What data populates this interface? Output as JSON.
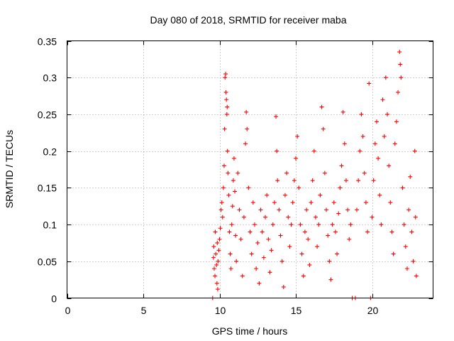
{
  "chart_data": {
    "type": "scatter",
    "title": "Day 080 of 2018, SRMTID for receiver maba",
    "xlabel": "GPS time / hours",
    "ylabel": "SRMTID / TECUs",
    "xlim": [
      0,
      24
    ],
    "ylim": [
      0,
      0.35
    ],
    "x_ticks": [
      0,
      5,
      10,
      15,
      20
    ],
    "x_tick_labels": [
      "0",
      "5",
      "10",
      "15",
      "20"
    ],
    "y_ticks": [
      0,
      0.05,
      0.1,
      0.15,
      0.2,
      0.25,
      0.3,
      0.35
    ],
    "y_tick_labels": [
      "0",
      "0.05",
      "0.1",
      "0.15",
      "0.2",
      "0.25",
      "0.3",
      "0.35"
    ],
    "grid": true,
    "marker": "+",
    "color": "#ff0000",
    "series": [
      {
        "name": "SRMTID",
        "points": [
          [
            9.55,
            0.0
          ],
          [
            9.6,
            0.055
          ],
          [
            9.62,
            0.07
          ],
          [
            9.65,
            0.04
          ],
          [
            9.7,
            0.03
          ],
          [
            9.72,
            0.09
          ],
          [
            9.75,
            0.06
          ],
          [
            9.8,
            0.045
          ],
          [
            9.83,
            0.02
          ],
          [
            9.85,
            0.075
          ],
          [
            9.88,
            0.012
          ],
          [
            9.9,
            0.05
          ],
          [
            9.95,
            0.065
          ],
          [
            10.0,
            0.08
          ],
          [
            10.05,
            0.095
          ],
          [
            10.1,
            0.12
          ],
          [
            10.15,
            0.13
          ],
          [
            10.2,
            0.11
          ],
          [
            10.25,
            0.15
          ],
          [
            10.3,
            0.18
          ],
          [
            10.33,
            0.23
          ],
          [
            10.36,
            0.3
          ],
          [
            10.4,
            0.305
          ],
          [
            10.42,
            0.28
          ],
          [
            10.45,
            0.27
          ],
          [
            10.48,
            0.25
          ],
          [
            10.5,
            0.26
          ],
          [
            10.52,
            0.2
          ],
          [
            10.55,
            0.17
          ],
          [
            10.6,
            0.14
          ],
          [
            10.65,
            0.09
          ],
          [
            10.7,
            0.06
          ],
          [
            10.75,
            0.04
          ],
          [
            10.8,
            0.1
          ],
          [
            10.85,
            0.125
          ],
          [
            10.9,
            0.16
          ],
          [
            10.95,
            0.19
          ],
          [
            11.0,
            0.145
          ],
          [
            11.05,
            0.085
          ],
          [
            11.1,
            0.05
          ],
          [
            11.2,
            0.17
          ],
          [
            11.3,
            0.12
          ],
          [
            11.4,
            0.08
          ],
          [
            11.5,
            0.03
          ],
          [
            11.6,
            0.11
          ],
          [
            11.7,
            0.21
          ],
          [
            11.75,
            0.253
          ],
          [
            11.8,
            0.23
          ],
          [
            11.9,
            0.15
          ],
          [
            12.0,
            0.09
          ],
          [
            12.1,
            0.06
          ],
          [
            12.2,
            0.13
          ],
          [
            12.3,
            0.1
          ],
          [
            12.4,
            0.04
          ],
          [
            12.5,
            0.075
          ],
          [
            12.6,
            0.02
          ],
          [
            12.7,
            0.12
          ],
          [
            12.8,
            0.09
          ],
          [
            12.9,
            0.055
          ],
          [
            13.0,
            0.11
          ],
          [
            13.1,
            0.14
          ],
          [
            13.2,
            0.08
          ],
          [
            13.3,
            0.035
          ],
          [
            13.4,
            0.065
          ],
          [
            13.5,
            0.1
          ],
          [
            13.6,
            0.13
          ],
          [
            13.7,
            0.247
          ],
          [
            13.75,
            0.2
          ],
          [
            13.8,
            0.16
          ],
          [
            13.9,
            0.12
          ],
          [
            14.0,
            0.085
          ],
          [
            14.1,
            0.05
          ],
          [
            14.2,
            0.015
          ],
          [
            14.3,
            0.14
          ],
          [
            14.4,
            0.17
          ],
          [
            14.5,
            0.11
          ],
          [
            14.6,
            0.07
          ],
          [
            14.7,
            0.1
          ],
          [
            14.8,
            0.13
          ],
          [
            14.9,
            0.16
          ],
          [
            15.0,
            0.19
          ],
          [
            15.1,
            0.22
          ],
          [
            15.2,
            0.15
          ],
          [
            15.3,
            0.1
          ],
          [
            15.4,
            0.06
          ],
          [
            15.5,
            0.03
          ],
          [
            15.6,
            0.09
          ],
          [
            15.7,
            0.12
          ],
          [
            15.8,
            0.08
          ],
          [
            15.9,
            0.045
          ],
          [
            16.0,
            0.13
          ],
          [
            16.1,
            0.16
          ],
          [
            16.2,
            0.2
          ],
          [
            16.3,
            0.11
          ],
          [
            16.4,
            0.07
          ],
          [
            16.5,
            0.1
          ],
          [
            16.6,
            0.14
          ],
          [
            16.7,
            0.26
          ],
          [
            16.8,
            0.23
          ],
          [
            16.9,
            0.17
          ],
          [
            17.0,
            0.12
          ],
          [
            17.1,
            0.085
          ],
          [
            17.2,
            0.05
          ],
          [
            17.3,
            0.025
          ],
          [
            17.4,
            0.1
          ],
          [
            17.5,
            0.13
          ],
          [
            17.6,
            0.09
          ],
          [
            17.7,
            0.06
          ],
          [
            17.8,
            0.115
          ],
          [
            17.9,
            0.15
          ],
          [
            18.0,
            0.18
          ],
          [
            18.1,
            0.253
          ],
          [
            18.2,
            0.21
          ],
          [
            18.3,
            0.16
          ],
          [
            18.4,
            0.12
          ],
          [
            18.5,
            0.08
          ],
          [
            18.6,
            0.1
          ],
          [
            18.7,
            0.0
          ],
          [
            18.9,
            0.0
          ],
          [
            19.0,
            0.12
          ],
          [
            19.1,
            0.16
          ],
          [
            19.2,
            0.2
          ],
          [
            19.3,
            0.25
          ],
          [
            19.4,
            0.22
          ],
          [
            19.5,
            0.17
          ],
          [
            19.6,
            0.13
          ],
          [
            19.7,
            0.09
          ],
          [
            19.8,
            0.292
          ],
          [
            19.9,
            0.0
          ],
          [
            20.0,
            0.11
          ],
          [
            20.1,
            0.16
          ],
          [
            20.2,
            0.21
          ],
          [
            20.3,
            0.24
          ],
          [
            20.4,
            0.19
          ],
          [
            20.5,
            0.14
          ],
          [
            20.6,
            0.1
          ],
          [
            20.7,
            0.27
          ],
          [
            20.8,
            0.22
          ],
          [
            20.9,
            0.3
          ],
          [
            21.0,
            0.25
          ],
          [
            21.1,
            0.18
          ],
          [
            21.2,
            0.13
          ],
          [
            21.3,
            0.09
          ],
          [
            21.4,
            0.06
          ],
          [
            21.5,
            0.21
          ],
          [
            21.6,
            0.24
          ],
          [
            21.7,
            0.28
          ],
          [
            21.8,
            0.335
          ],
          [
            21.85,
            0.318
          ],
          [
            21.9,
            0.3
          ],
          [
            22.0,
            0.15
          ],
          [
            22.1,
            0.1
          ],
          [
            22.2,
            0.07
          ],
          [
            22.3,
            0.04
          ],
          [
            22.4,
            0.12
          ],
          [
            22.5,
            0.165
          ],
          [
            22.6,
            0.09
          ],
          [
            22.7,
            0.05
          ],
          [
            22.8,
            0.2
          ],
          [
            22.85,
            0.11
          ],
          [
            22.9,
            0.03
          ]
        ]
      }
    ]
  }
}
